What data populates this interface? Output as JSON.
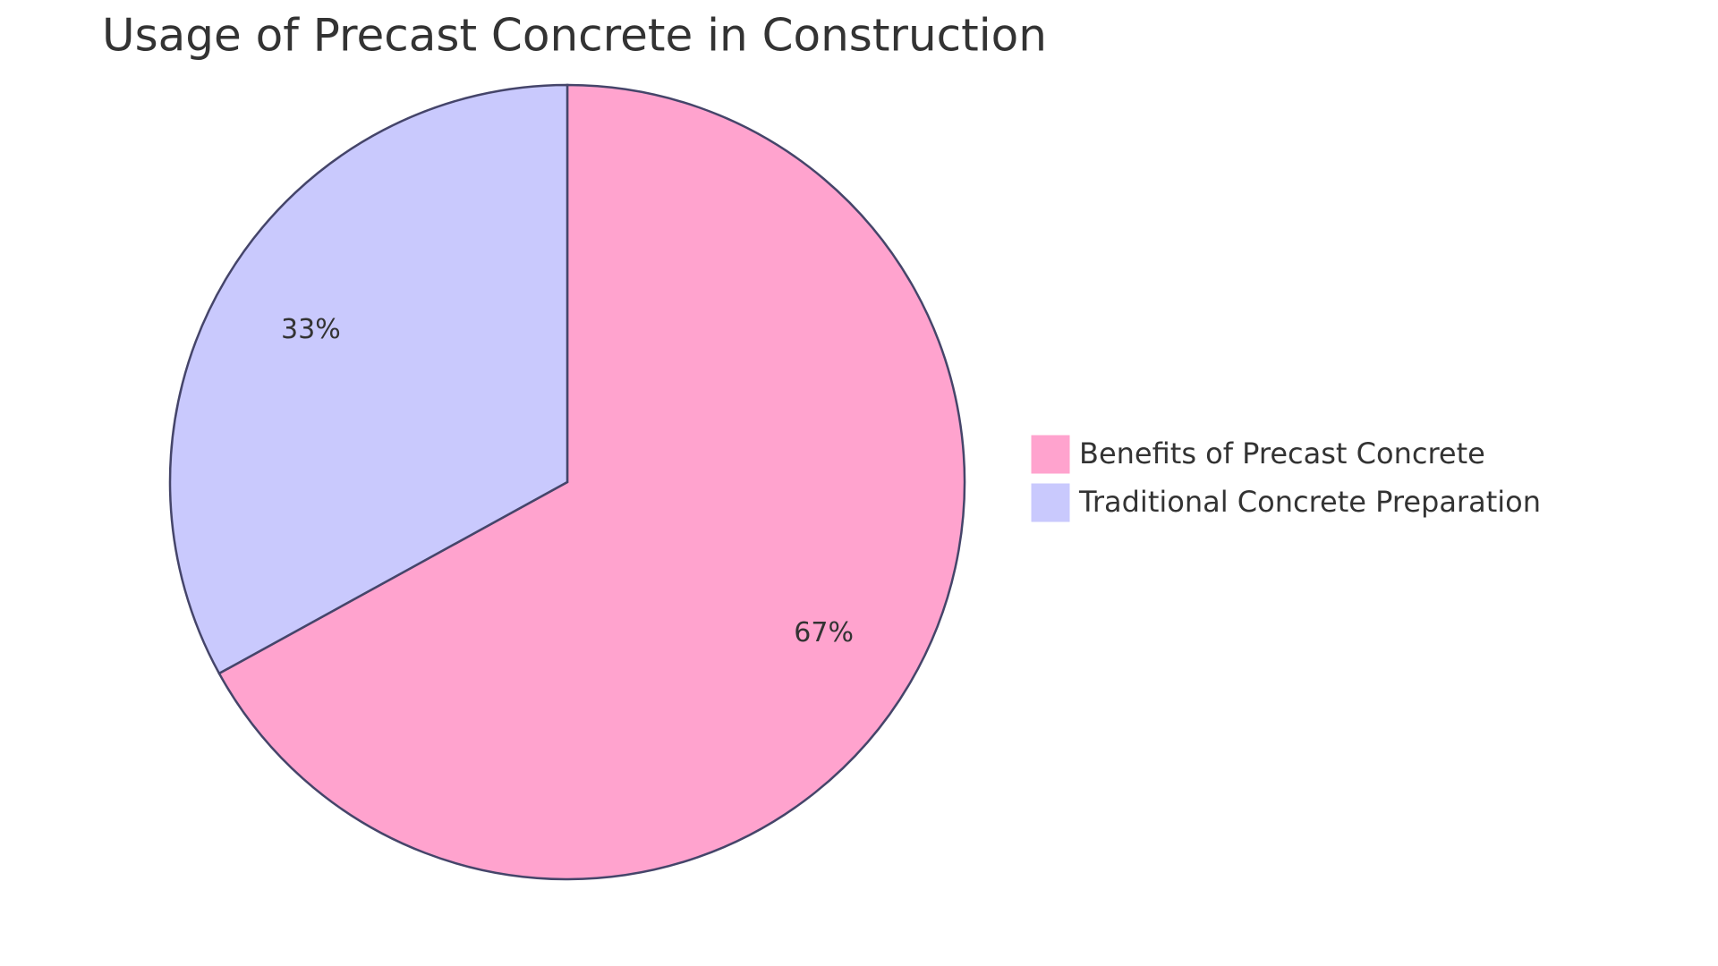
{
  "chart_data": {
    "type": "pie",
    "title": "Usage of Precast Concrete in Construction",
    "categories": [
      "Benefits of Precast Concrete",
      "Traditional Concrete Preparation"
    ],
    "values": [
      67,
      33
    ],
    "value_labels": [
      "67%",
      "33%"
    ],
    "colors": [
      "#ffa3ce",
      "#c9c9fd"
    ]
  }
}
